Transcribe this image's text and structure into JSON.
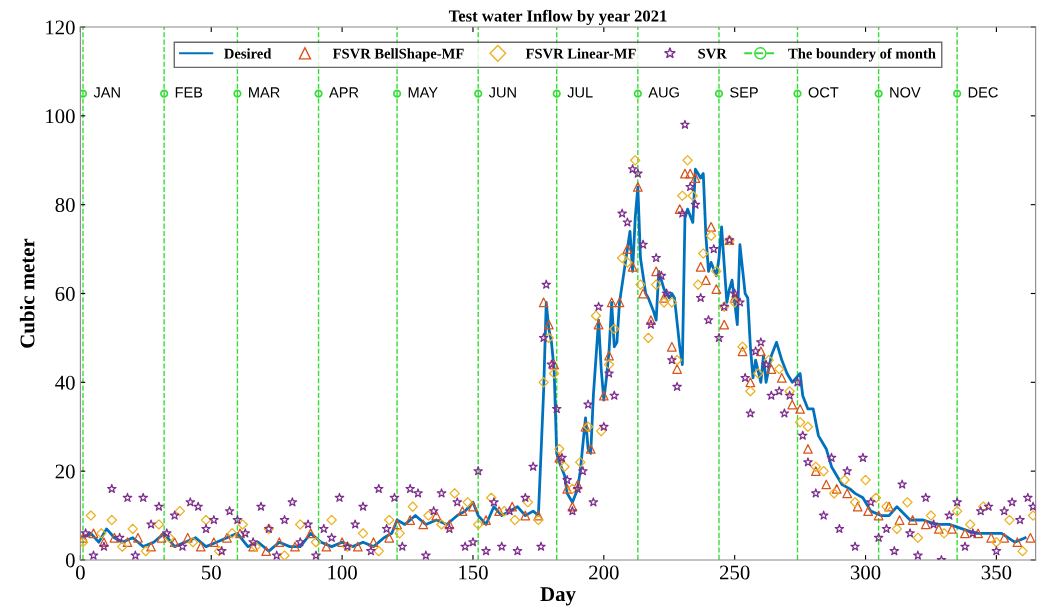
{
  "chart_data": {
    "type": "line",
    "title": "Test water Inflow by year 2021",
    "xlabel": "Day",
    "ylabel": "Cubic meter",
    "xlim": [
      0,
      365
    ],
    "xticks": [
      0,
      50,
      100,
      150,
      200,
      250,
      300,
      350
    ],
    "ylim": [
      0,
      120
    ],
    "yticks": [
      0,
      20,
      40,
      60,
      80,
      100,
      120
    ],
    "grid": false,
    "legend": "top",
    "series": [
      {
        "name": "Desired",
        "color": "#0072bd",
        "marker": "none",
        "line_style": "solid",
        "x": [
          1,
          4,
          7,
          10,
          13,
          16,
          20,
          24,
          28,
          32,
          36,
          40,
          44,
          48,
          52,
          56,
          60,
          64,
          68,
          72,
          76,
          80,
          84,
          88,
          92,
          96,
          100,
          104,
          108,
          112,
          116,
          119,
          121,
          124,
          128,
          132,
          136,
          140,
          144,
          147,
          150,
          152,
          155,
          158,
          161,
          164,
          167,
          170,
          173,
          175,
          177,
          178,
          179,
          180,
          181,
          182,
          183,
          185,
          186,
          188,
          190,
          191,
          193,
          194,
          195,
          196,
          198,
          199,
          200,
          201,
          202,
          203,
          204,
          205,
          206,
          208,
          209,
          210,
          211,
          212,
          213,
          214,
          216,
          217,
          219,
          220,
          221,
          223,
          225,
          226,
          227,
          229,
          230,
          231,
          232,
          234,
          235,
          237,
          238,
          239,
          240,
          241,
          243,
          244,
          245,
          247,
          248,
          249,
          251,
          252,
          254,
          255,
          256,
          257,
          258,
          260,
          261,
          262,
          264,
          266,
          268,
          270,
          272,
          275,
          276,
          278,
          280,
          282,
          285,
          287,
          291,
          294,
          296,
          299,
          302,
          306,
          309,
          312,
          317,
          322,
          327,
          332,
          337,
          342,
          347,
          352,
          357,
          361
        ],
        "values": [
          5,
          6,
          4,
          7,
          5,
          4,
          5,
          3,
          4,
          6,
          3,
          4,
          5,
          3,
          4,
          5,
          6,
          3,
          4,
          2,
          4,
          3,
          3,
          6,
          4,
          3,
          4,
          3,
          4,
          3,
          5,
          6,
          9,
          8,
          10,
          8,
          9,
          8,
          10,
          11,
          13,
          10,
          8,
          12,
          10,
          11,
          12,
          10,
          11,
          10,
          38,
          58,
          52,
          49,
          43,
          24,
          22,
          19,
          15,
          13,
          16,
          20,
          32,
          25,
          24,
          37,
          54,
          43,
          36,
          41,
          47,
          58,
          48,
          49,
          58,
          66,
          70,
          74,
          65,
          77,
          84,
          68,
          60,
          59,
          56,
          54,
          65,
          61,
          59,
          60,
          59,
          48,
          44,
          77,
          79,
          76,
          88,
          86,
          87,
          73,
          65,
          67,
          64,
          68,
          75,
          58,
          61,
          63,
          53,
          71,
          60,
          59,
          48,
          41,
          45,
          40,
          46,
          40,
          46,
          49,
          45,
          42,
          40,
          42,
          37,
          34,
          34,
          28,
          25,
          21,
          17,
          16,
          15,
          14,
          11,
          10,
          10,
          12,
          9,
          9,
          8,
          8,
          7,
          6,
          6,
          6,
          4,
          5
        ]
      },
      {
        "name": "FSVR BellShape-MF",
        "type": "scatter",
        "color": "#d95319",
        "marker": "triangle",
        "x": [
          1,
          5,
          9,
          13,
          18,
          22,
          27,
          31,
          36,
          41,
          46,
          51,
          56,
          61,
          66,
          71,
          76,
          82,
          88,
          94,
          100,
          106,
          112,
          118,
          121,
          126,
          131,
          136,
          141,
          146,
          150,
          155,
          160,
          165,
          170,
          175,
          177,
          179,
          181,
          183,
          186,
          188,
          190,
          193,
          195,
          198,
          200,
          202,
          203,
          206,
          209,
          211,
          213,
          215,
          218,
          220,
          223,
          226,
          228,
          229,
          231,
          233,
          235,
          237,
          239,
          241,
          243,
          246,
          248,
          250,
          253,
          256,
          260,
          264,
          268,
          272,
          275,
          278,
          281,
          285,
          289,
          293,
          297,
          301,
          305,
          309,
          313,
          318,
          323,
          328,
          333,
          338,
          343,
          348,
          353,
          358,
          363
        ],
        "values": [
          5,
          6,
          4,
          5,
          4,
          5,
          3,
          5,
          4,
          5,
          3,
          4,
          5,
          6,
          3,
          2,
          4,
          3,
          6,
          3,
          4,
          3,
          4,
          5,
          8,
          9,
          8,
          10,
          8,
          11,
          12,
          9,
          11,
          12,
          10,
          10,
          58,
          53,
          44,
          23,
          16,
          12,
          17,
          30,
          25,
          53,
          37,
          46,
          58,
          58,
          70,
          66,
          84,
          60,
          54,
          65,
          59,
          48,
          43,
          79,
          87,
          87,
          86,
          66,
          63,
          75,
          61,
          53,
          72,
          59,
          47,
          40,
          47,
          43,
          41,
          35,
          34,
          25,
          20,
          17,
          16,
          15,
          12,
          11,
          10,
          12,
          9,
          9,
          8,
          7,
          7,
          6,
          6,
          5,
          5,
          4,
          5
        ]
      },
      {
        "name": "FSVR Linear-MF",
        "type": "scatter",
        "color": "#edb120",
        "marker": "diamond",
        "x": [
          1,
          4,
          8,
          12,
          16,
          20,
          25,
          30,
          34,
          38,
          43,
          48,
          53,
          58,
          62,
          67,
          72,
          78,
          84,
          90,
          96,
          102,
          108,
          114,
          118,
          122,
          127,
          133,
          138,
          143,
          148,
          152,
          157,
          162,
          166,
          171,
          175,
          177,
          179,
          181,
          183,
          185,
          188,
          191,
          194,
          197,
          199,
          202,
          204,
          207,
          209,
          212,
          214,
          217,
          220,
          223,
          226,
          228,
          230,
          232,
          234,
          236,
          238,
          241,
          243,
          246,
          248,
          250,
          253,
          256,
          259,
          263,
          267,
          271,
          275,
          278,
          281,
          284,
          288,
          292,
          296,
          300,
          304,
          308,
          312,
          316,
          320,
          325,
          330,
          335,
          340,
          345,
          350,
          355,
          360,
          364
        ],
        "values": [
          4,
          10,
          6,
          9,
          3,
          7,
          2,
          8,
          5,
          11,
          4,
          9,
          2,
          6,
          8,
          3,
          7,
          1,
          8,
          4,
          9,
          3,
          6,
          2,
          9,
          6,
          12,
          10,
          8,
          15,
          13,
          8,
          14,
          11,
          9,
          13,
          9,
          40,
          50,
          42,
          25,
          21,
          16,
          22,
          30,
          55,
          29,
          44,
          52,
          68,
          67,
          90,
          62,
          50,
          62,
          58,
          58,
          45,
          82,
          90,
          82,
          62,
          69,
          73,
          65,
          57,
          72,
          58,
          48,
          38,
          42,
          45,
          43,
          38,
          31,
          30,
          21,
          20,
          15,
          18,
          13,
          18,
          14,
          12,
          7,
          13,
          5,
          10,
          6,
          11,
          8,
          12,
          4,
          9,
          2,
          10
        ]
      },
      {
        "name": "SVR",
        "type": "scatter",
        "color": "#7e2f8e",
        "marker": "star",
        "x": [
          2,
          5,
          9,
          12,
          15,
          18,
          21,
          24,
          27,
          30,
          33,
          36,
          39,
          42,
          45,
          48,
          51,
          54,
          57,
          60,
          63,
          66,
          69,
          72,
          75,
          78,
          81,
          84,
          87,
          90,
          93,
          96,
          99,
          102,
          105,
          108,
          111,
          114,
          117,
          120,
          123,
          126,
          129,
          132,
          135,
          138,
          141,
          144,
          147,
          150,
          152,
          155,
          158,
          161,
          164,
          167,
          170,
          173,
          176,
          177,
          178,
          180,
          182,
          184,
          186,
          188,
          190,
          192,
          194,
          196,
          198,
          200,
          202,
          204,
          207,
          209,
          211,
          213,
          215,
          218,
          220,
          222,
          224,
          226,
          228,
          230,
          231,
          233,
          235,
          237,
          240,
          242,
          244,
          246,
          248,
          250,
          252,
          254,
          256,
          258,
          260,
          262,
          264,
          267,
          269,
          271,
          274,
          276,
          278,
          281,
          284,
          287,
          290,
          293,
          296,
          299,
          302,
          305,
          308,
          311,
          314,
          317,
          320,
          323,
          326,
          329,
          332,
          335,
          338,
          341,
          344,
          347,
          350,
          353,
          356,
          359,
          362,
          364
        ],
        "values": [
          6,
          1,
          3,
          16,
          5,
          14,
          1,
          14,
          8,
          12,
          6,
          10,
          3,
          13,
          12,
          7,
          9,
          2,
          11,
          9,
          6,
          4,
          12,
          7,
          1,
          9,
          13,
          4,
          8,
          1,
          7,
          5,
          14,
          3,
          8,
          12,
          2,
          16,
          7,
          14,
          3,
          16,
          15,
          1,
          11,
          15,
          7,
          13,
          3,
          4,
          20,
          2,
          13,
          3,
          11,
          2,
          14,
          21,
          3,
          50,
          62,
          44,
          34,
          23,
          18,
          11,
          16,
          20,
          35,
          13,
          57,
          30,
          42,
          37,
          78,
          76,
          88,
          87,
          71,
          53,
          68,
          64,
          60,
          45,
          39,
          78,
          98,
          84,
          80,
          59,
          54,
          70,
          50,
          57,
          72,
          60,
          58,
          41,
          33,
          47,
          49,
          44,
          37,
          38,
          33,
          37,
          40,
          28,
          22,
          15,
          10,
          23,
          7,
          20,
          3,
          23,
          13,
          5,
          7,
          2,
          17,
          6,
          1,
          14,
          8,
          0,
          10,
          13,
          3,
          6,
          11,
          12,
          2,
          11,
          13,
          9,
          14,
          12
        ]
      },
      {
        "name": "The boundery of month",
        "type": "scatter",
        "color": "#33dd33",
        "marker": "circle",
        "line_style": "dashed",
        "x": [
          1,
          32,
          60,
          91,
          121,
          152,
          182,
          213,
          244,
          274,
          305,
          335
        ],
        "values": [
          105,
          105,
          105,
          105,
          105,
          105,
          105,
          105,
          105,
          105,
          105,
          105
        ]
      }
    ],
    "ref_lines": [
      {
        "axis": "x",
        "value": 1,
        "label": "JAN",
        "color": "#33dd33",
        "line_style": "dashed"
      },
      {
        "axis": "x",
        "value": 32,
        "label": "FEB",
        "color": "#33dd33",
        "line_style": "dashed"
      },
      {
        "axis": "x",
        "value": 60,
        "label": "MAR",
        "color": "#33dd33",
        "line_style": "dashed"
      },
      {
        "axis": "x",
        "value": 91,
        "label": "APR",
        "color": "#33dd33",
        "line_style": "dashed"
      },
      {
        "axis": "x",
        "value": 121,
        "label": "MAY",
        "color": "#33dd33",
        "line_style": "dashed"
      },
      {
        "axis": "x",
        "value": 152,
        "label": "JUN",
        "color": "#33dd33",
        "line_style": "dashed"
      },
      {
        "axis": "x",
        "value": 182,
        "label": "JUL",
        "color": "#33dd33",
        "line_style": "dashed"
      },
      {
        "axis": "x",
        "value": 213,
        "label": "AUG",
        "color": "#33dd33",
        "line_style": "dashed"
      },
      {
        "axis": "x",
        "value": 244,
        "label": "SEP",
        "color": "#33dd33",
        "line_style": "dashed"
      },
      {
        "axis": "x",
        "value": 274,
        "label": "OCT",
        "color": "#33dd33",
        "line_style": "dashed"
      },
      {
        "axis": "x",
        "value": 305,
        "label": "NOV",
        "color": "#33dd33",
        "line_style": "dashed"
      },
      {
        "axis": "x",
        "value": 335,
        "label": "DEC",
        "color": "#33dd33",
        "line_style": "dashed"
      }
    ]
  }
}
